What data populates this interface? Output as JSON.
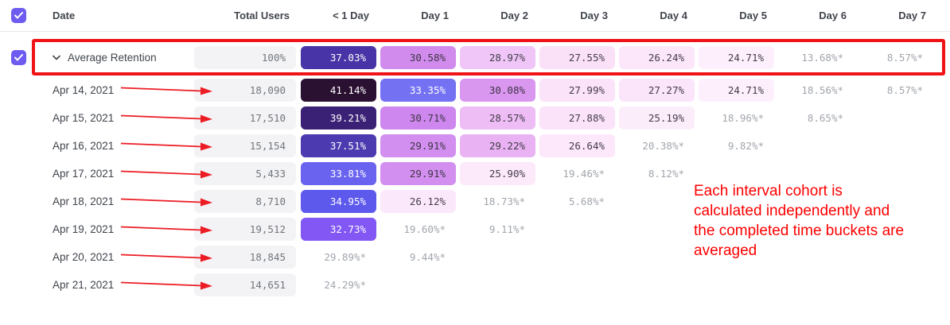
{
  "table": {
    "columns": [
      "Date",
      "Total Users",
      "< 1 Day",
      "Day 1",
      "Day 2",
      "Day 3",
      "Day 4",
      "Day 5",
      "Day 6",
      "Day 7"
    ],
    "average_row": {
      "label": "Average Retention",
      "total": "100%",
      "cells": [
        {
          "v": "37.03%",
          "bg": "#4834a6",
          "fg": "#ffffff"
        },
        {
          "v": "30.58%",
          "bg": "#d08bec",
          "fg": "#3e3545"
        },
        {
          "v": "28.97%",
          "bg": "#efc6f7",
          "fg": "#443c4b"
        },
        {
          "v": "27.55%",
          "bg": "#fae1f8",
          "fg": "#443c4b"
        },
        {
          "v": "26.24%",
          "bg": "#fbe6fa",
          "fg": "#443c4b"
        },
        {
          "v": "24.71%",
          "bg": "#fdf0fc",
          "fg": "#443c4b"
        },
        {
          "v": "13.68%*",
          "star": true
        },
        {
          "v": "8.57%*",
          "star": true
        }
      ]
    },
    "rows": [
      {
        "date": "Apr 14, 2021",
        "total": "18,090",
        "cells": [
          {
            "v": "41.14%",
            "bg": "#2a1031",
            "fg": "#ffffff"
          },
          {
            "v": "33.35%",
            "bg": "#7472f3",
            "fg": "#ffffff"
          },
          {
            "v": "30.08%",
            "bg": "#da97f0",
            "fg": "#3e3545"
          },
          {
            "v": "27.99%",
            "bg": "#fbe3f9",
            "fg": "#443c4b"
          },
          {
            "v": "27.27%",
            "bg": "#fbe5fa",
            "fg": "#443c4b"
          },
          {
            "v": "24.71%",
            "bg": "#fdf0fc",
            "fg": "#443c4b"
          },
          {
            "v": "18.56%*",
            "star": true
          },
          {
            "v": "8.57%*",
            "star": true
          }
        ]
      },
      {
        "date": "Apr 15, 2021",
        "total": "17,510",
        "cells": [
          {
            "v": "39.21%",
            "bg": "#3b2176",
            "fg": "#ffffff"
          },
          {
            "v": "30.71%",
            "bg": "#ce87ee",
            "fg": "#3e3545"
          },
          {
            "v": "28.57%",
            "bg": "#eebdf5",
            "fg": "#443c4b"
          },
          {
            "v": "27.88%",
            "bg": "#fbe4f9",
            "fg": "#443c4b"
          },
          {
            "v": "25.19%",
            "bg": "#fcedfb",
            "fg": "#443c4b"
          },
          {
            "v": "18.96%*",
            "star": true
          },
          {
            "v": "8.65%*",
            "star": true
          },
          null
        ]
      },
      {
        "date": "Apr 16, 2021",
        "total": "15,154",
        "cells": [
          {
            "v": "37.51%",
            "bg": "#4c3ab0",
            "fg": "#ffffff"
          },
          {
            "v": "29.91%",
            "bg": "#d28fef",
            "fg": "#3e3545"
          },
          {
            "v": "29.22%",
            "bg": "#e9b2f3",
            "fg": "#443c4b"
          },
          {
            "v": "26.64%",
            "bg": "#fce8fa",
            "fg": "#443c4b"
          },
          {
            "v": "20.38%*",
            "star": true
          },
          {
            "v": "9.82%*",
            "star": true
          },
          null,
          null
        ]
      },
      {
        "date": "Apr 17, 2021",
        "total": "5,433",
        "cells": [
          {
            "v": "33.81%",
            "bg": "#6a63f0",
            "fg": "#ffffff"
          },
          {
            "v": "29.91%",
            "bg": "#d28fef",
            "fg": "#3e3545"
          },
          {
            "v": "25.90%",
            "bg": "#fceafb",
            "fg": "#443c4b"
          },
          {
            "v": "19.46%*",
            "star": true
          },
          {
            "v": "8.12%*",
            "star": true
          },
          null,
          null,
          null
        ]
      },
      {
        "date": "Apr 18, 2021",
        "total": "8,710",
        "cells": [
          {
            "v": "34.95%",
            "bg": "#5d59ed",
            "fg": "#ffffff"
          },
          {
            "v": "26.12%",
            "bg": "#fce8fb",
            "fg": "#443c4b"
          },
          {
            "v": "18.73%*",
            "star": true
          },
          {
            "v": "5.68%*",
            "star": true
          },
          null,
          null,
          null,
          null
        ]
      },
      {
        "date": "Apr 19, 2021",
        "total": "19,512",
        "cells": [
          {
            "v": "32.73%",
            "bg": "#8257f4",
            "fg": "#ffffff"
          },
          {
            "v": "19.60%*",
            "star": true
          },
          {
            "v": "9.11%*",
            "star": true
          },
          null,
          null,
          null,
          null,
          null
        ]
      },
      {
        "date": "Apr 20, 2021",
        "total": "18,845",
        "cells": [
          {
            "v": "29.89%*",
            "star": true
          },
          {
            "v": "9.44%*",
            "star": true
          },
          null,
          null,
          null,
          null,
          null,
          null
        ]
      },
      {
        "date": "Apr 21, 2021",
        "total": "14,651",
        "cells": [
          {
            "v": "24.29%*",
            "star": true
          },
          null,
          null,
          null,
          null,
          null,
          null,
          null
        ]
      }
    ]
  },
  "annotation": {
    "lines": [
      "Each interval cohort is",
      "calculated independently and",
      "the completed time buckets are",
      "averaged"
    ]
  },
  "colors": {
    "annotation_red": "#fe0000",
    "highlight_red": "#ef1216",
    "arrow_red": "#ec1c24",
    "checkbox_purple": "#6e5cf1",
    "total_cell_bg": "#f3f3f5",
    "star_text": "#a1a5ac"
  },
  "icons": {
    "header_checkbox": "checked",
    "average_row_checkbox": "checked",
    "average_row_chevron": "expanded"
  }
}
